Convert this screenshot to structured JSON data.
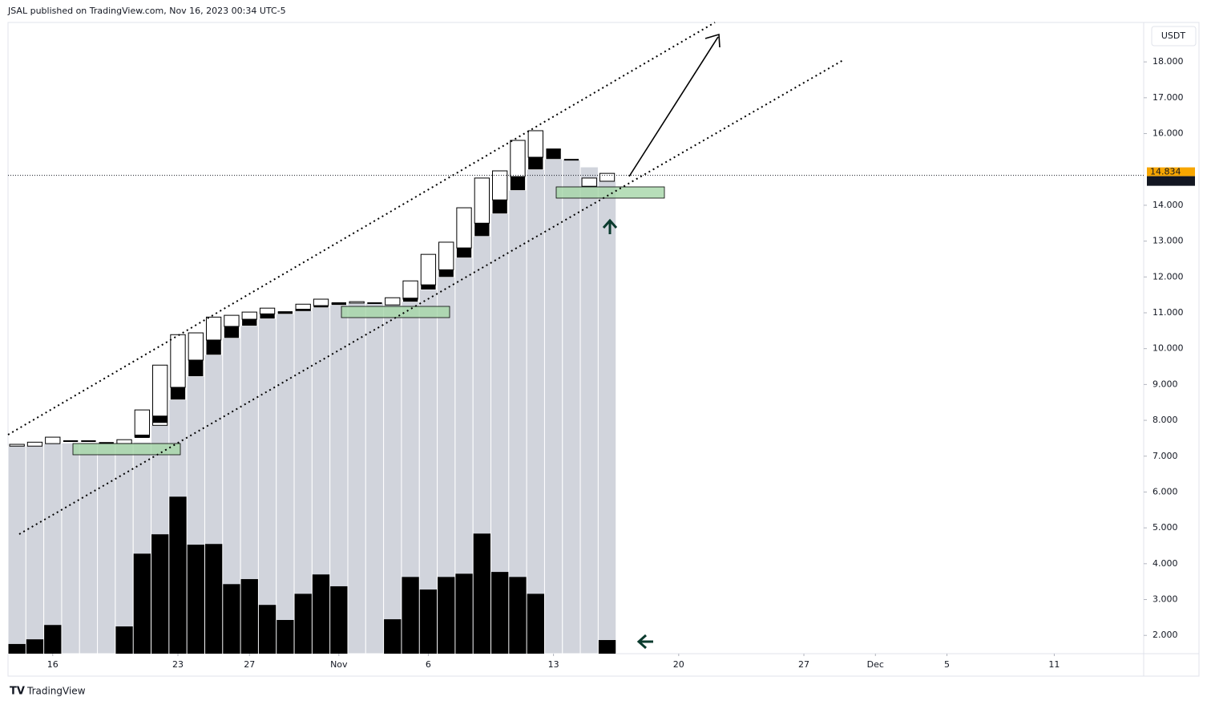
{
  "chart_data": {
    "type": "candlestick",
    "header": "JSAL published on TradingView.com, Nov 16, 2023 00:34 UTC-5",
    "currency": "USDT",
    "footer": "TradingView",
    "last_price": 14.834,
    "countdown": "18:25:32",
    "colors": {
      "column": "#d1d4dc",
      "body": "#ffffff",
      "box": "#000000",
      "volume": "#000000",
      "price_tag": "#f7a600"
    },
    "xlim": [
      -0.5,
      63
    ],
    "xticks": [
      {
        "value": 2,
        "label": "16"
      },
      {
        "value": 9,
        "label": "23"
      },
      {
        "value": 13,
        "label": "27"
      },
      {
        "value": 18,
        "label": "Nov"
      },
      {
        "value": 23,
        "label": "6"
      },
      {
        "value": 30,
        "label": "13"
      },
      {
        "value": 37,
        "label": "20"
      },
      {
        "value": 44,
        "label": "27"
      },
      {
        "value": 48,
        "label": "Dec"
      },
      {
        "value": 52,
        "label": "5"
      },
      {
        "value": 58,
        "label": "11"
      }
    ],
    "ylim": [
      1.49,
      19.1
    ],
    "yticks": [
      {
        "value": 2,
        "label": "2.000"
      },
      {
        "value": 3,
        "label": "3.000"
      },
      {
        "value": 4,
        "label": "4.000"
      },
      {
        "value": 5,
        "label": "5.000"
      },
      {
        "value": 6,
        "label": "6.000"
      },
      {
        "value": 7,
        "label": "7.000"
      },
      {
        "value": 8,
        "label": "8.000"
      },
      {
        "value": 9,
        "label": "9.000"
      },
      {
        "value": 10,
        "label": "10.000"
      },
      {
        "value": 11,
        "label": "11.000"
      },
      {
        "value": 12,
        "label": "12.000"
      },
      {
        "value": 13,
        "label": "13.000"
      },
      {
        "value": 14,
        "label": "14.000"
      },
      {
        "value": 16,
        "label": "16.000"
      },
      {
        "value": 17,
        "label": "17.000"
      },
      {
        "value": 18,
        "label": "18.000"
      }
    ],
    "open": [
      7.28,
      7.28,
      7.35,
      7.42,
      7.4,
      7.37,
      7.35,
      7.53,
      7.86,
      8.92,
      9.68,
      10.24,
      10.62,
      10.82,
      10.97,
      11.02,
      11.06,
      11.2,
      11.27,
      11.27,
      11.27,
      11.22,
      11.38,
      11.78,
      12.2,
      12.81,
      13.5,
      14.15,
      14.8,
      15.34,
      15.56,
      15.27,
      14.53,
      14.67
    ],
    "close": [
      7.33,
      7.39,
      7.53,
      7.42,
      7.42,
      7.37,
      7.46,
      8.29,
      9.54,
      10.39,
      10.44,
      10.88,
      10.93,
      11.02,
      11.13,
      11.02,
      11.24,
      11.38,
      11.27,
      11.31,
      11.27,
      11.42,
      11.89,
      12.63,
      12.97,
      13.93,
      14.76,
      14.96,
      15.81,
      16.08,
      15.56,
      15.27,
      14.76,
      14.89
    ],
    "box_low": [
      null,
      null,
      null,
      null,
      null,
      null,
      null,
      7.51,
      7.93,
      8.58,
      9.23,
      9.83,
      10.3,
      10.64,
      10.84,
      10.97,
      11.06,
      11.15,
      11.22,
      null,
      null,
      null,
      11.31,
      11.65,
      12.0,
      12.54,
      13.14,
      13.77,
      14.42,
      15.0,
      15.29,
      null,
      null,
      null
    ],
    "box_high": [
      null,
      null,
      null,
      null,
      null,
      null,
      null,
      7.6,
      8.13,
      8.92,
      9.68,
      10.24,
      10.62,
      10.82,
      10.97,
      11.02,
      11.11,
      11.2,
      11.27,
      null,
      null,
      null,
      11.42,
      11.78,
      12.2,
      12.81,
      13.5,
      14.15,
      14.8,
      15.34,
      15.56,
      null,
      null,
      null
    ],
    "column_top": [
      7.28,
      7.28,
      7.35,
      7.37,
      7.37,
      7.37,
      7.35,
      7.39,
      7.86,
      8.58,
      9.23,
      9.83,
      10.3,
      10.64,
      10.84,
      10.97,
      11.06,
      11.15,
      11.22,
      11.27,
      11.27,
      11.22,
      11.31,
      11.65,
      12.0,
      12.54,
      13.14,
      13.77,
      14.42,
      15.0,
      15.29,
      15.27,
      15.07,
      14.67
    ],
    "volume": [
      1.76,
      1.89,
      2.29,
      null,
      null,
      null,
      2.25,
      4.28,
      4.82,
      5.87,
      4.53,
      4.55,
      3.43,
      3.57,
      2.85,
      2.43,
      3.16,
      3.7,
      3.37,
      null,
      null,
      2.45,
      3.63,
      3.28,
      3.63,
      3.72,
      4.84,
      3.77,
      3.63,
      3.16,
      null,
      null,
      null,
      1.87
    ]
  }
}
